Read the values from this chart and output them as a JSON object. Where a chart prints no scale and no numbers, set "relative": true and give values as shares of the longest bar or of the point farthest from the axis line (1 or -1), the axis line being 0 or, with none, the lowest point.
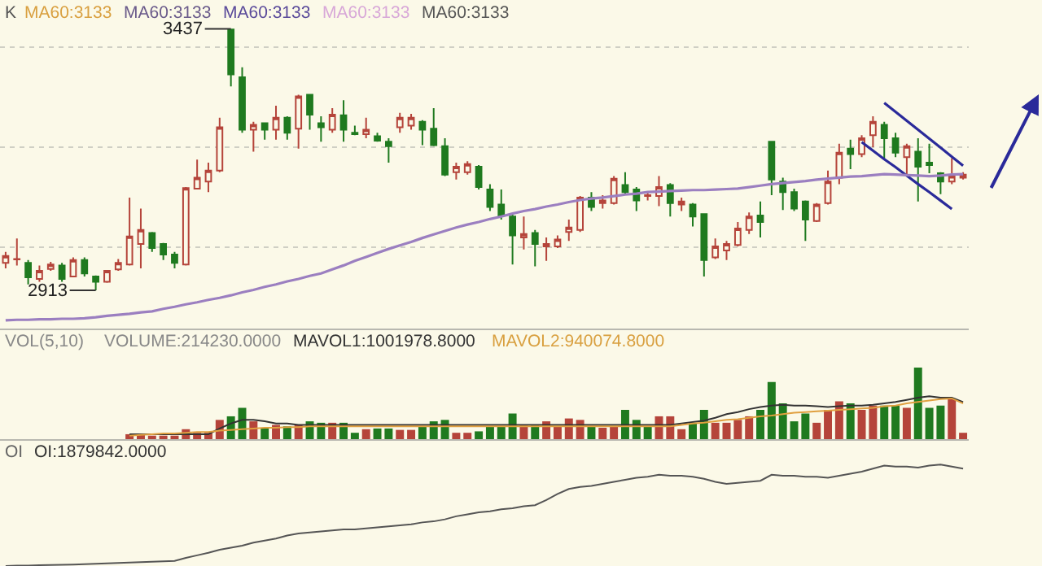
{
  "chart_data": [
    {
      "type": "candlestick",
      "tick_labels": false,
      "grid": "y",
      "ylim": [
        2837,
        3495
      ],
      "yticks": [
        {
          "value": 3000,
          "label": null
        },
        {
          "value": 3200,
          "label": null
        },
        {
          "value": 3400,
          "label": null
        }
      ],
      "annotations": [
        "K",
        "MA60:3133",
        "MA60:3133",
        "MA60:3133",
        "MA60:3133",
        "MA60:3133",
        "3437",
        "2913"
      ],
      "categories": [
        null,
        null,
        null,
        null,
        null,
        null,
        null,
        null,
        null,
        null,
        null,
        null,
        null,
        null,
        null,
        null,
        null,
        null,
        null,
        null,
        null,
        null,
        null,
        null,
        null,
        null,
        null,
        null,
        null,
        null,
        null,
        null,
        null,
        null,
        null,
        null,
        null,
        null,
        null,
        null,
        null,
        null,
        null,
        null,
        null,
        null,
        null,
        null,
        null,
        null,
        null,
        null,
        null,
        null,
        null,
        null,
        null,
        null,
        null,
        null,
        null,
        null,
        null,
        null,
        null,
        null,
        null,
        null,
        null,
        null,
        null,
        null,
        null,
        null,
        null,
        null,
        null,
        null,
        null,
        null,
        null,
        null,
        null,
        null,
        null,
        null
      ],
      "ohlc": [
        [
          2968,
          2990,
          2957,
          2982
        ],
        [
          2975,
          3017,
          2963,
          2976
        ],
        [
          2968,
          2974,
          2925,
          2939
        ],
        [
          2936,
          2963,
          2930,
          2952
        ],
        [
          2956,
          2970,
          2952,
          2965
        ],
        [
          2963,
          2968,
          2930,
          2936
        ],
        [
          2941,
          2979,
          2939,
          2974
        ],
        [
          2974,
          2979,
          2941,
          2947
        ],
        [
          2941,
          2943,
          2913,
          2930
        ],
        [
          2930,
          2954,
          2928,
          2952
        ],
        [
          2955,
          2976,
          2952,
          2968
        ],
        [
          2965,
          3099,
          2963,
          3021
        ],
        [
          3006,
          3077,
          2957,
          3034
        ],
        [
          3028,
          3030,
          2990,
          2998
        ],
        [
          3006,
          3008,
          2974,
          2985
        ],
        [
          2985,
          2990,
          2957,
          2968
        ],
        [
          2965,
          3120,
          2963,
          3118
        ],
        [
          3117,
          3175,
          3115,
          3139
        ],
        [
          3131,
          3169,
          3110,
          3153
        ],
        [
          3153,
          3259,
          3150,
          3240
        ],
        [
          3436,
          3437,
          3322,
          3346
        ],
        [
          3340,
          3360,
          3229,
          3235
        ],
        [
          3235,
          3251,
          3191,
          3245
        ],
        [
          3248,
          3248,
          3215,
          3235
        ],
        [
          3235,
          3283,
          3215,
          3259
        ],
        [
          3259,
          3262,
          3215,
          3229
        ],
        [
          3237,
          3305,
          3197,
          3302
        ],
        [
          3305,
          3305,
          3235,
          3265
        ],
        [
          3248,
          3262,
          3211,
          3240
        ],
        [
          3235,
          3278,
          3229,
          3265
        ],
        [
          3264,
          3294,
          3211,
          3235
        ],
        [
          3229,
          3243,
          3224,
          3226
        ],
        [
          3226,
          3259,
          3218,
          3235
        ],
        [
          3222,
          3229,
          3211,
          3213
        ],
        [
          3211,
          3218,
          3169,
          3202
        ],
        [
          3240,
          3269,
          3229,
          3259
        ],
        [
          3243,
          3267,
          3235,
          3259
        ],
        [
          3251,
          3254,
          3204,
          3235
        ],
        [
          3237,
          3278,
          3202,
          3204
        ],
        [
          3202,
          3218,
          3142,
          3145
        ],
        [
          3150,
          3169,
          3135,
          3161
        ],
        [
          3150,
          3172,
          3145,
          3166
        ],
        [
          3161,
          3164,
          3115,
          3120
        ],
        [
          3115,
          3126,
          3072,
          3080
        ],
        [
          3085,
          3115,
          3055,
          3063
        ],
        [
          3061,
          3066,
          2965,
          3023
        ],
        [
          3019,
          3061,
          2995,
          3026
        ],
        [
          3028,
          3034,
          2961,
          3006
        ],
        [
          3001,
          3019,
          2972,
          3006
        ],
        [
          3001,
          3023,
          2998,
          3015
        ],
        [
          3030,
          3055,
          3012,
          3039
        ],
        [
          3034,
          3102,
          3030,
          3099
        ],
        [
          3099,
          3110,
          3072,
          3080
        ],
        [
          3088,
          3104,
          3077,
          3093
        ],
        [
          3088,
          3142,
          3085,
          3137
        ],
        [
          3124,
          3150,
          3104,
          3110
        ],
        [
          3115,
          3120,
          3072,
          3093
        ],
        [
          3102,
          3110,
          3093,
          3104
        ],
        [
          3102,
          3142,
          3082,
          3120
        ],
        [
          3124,
          3128,
          3061,
          3088
        ],
        [
          3085,
          3099,
          3072,
          3091
        ],
        [
          3085,
          3088,
          3041,
          3061
        ],
        [
          3066,
          3066,
          2941,
          2974
        ],
        [
          2979,
          3017,
          2976,
          3001
        ],
        [
          2993,
          3012,
          2974,
          3006
        ],
        [
          3004,
          3050,
          3001,
          3037
        ],
        [
          3034,
          3069,
          3026,
          3061
        ],
        [
          3063,
          3091,
          3019,
          3050
        ],
        [
          3211,
          3211,
          3104,
          3135
        ],
        [
          3131,
          3139,
          3074,
          3110
        ],
        [
          3110,
          3117,
          3072,
          3077
        ],
        [
          3091,
          3093,
          3012,
          3055
        ],
        [
          3052,
          3088,
          3050,
          3085
        ],
        [
          3088,
          3153,
          3085,
          3131
        ],
        [
          3139,
          3207,
          3126,
          3189
        ],
        [
          3197,
          3215,
          3156,
          3186
        ],
        [
          3186,
          3224,
          3180,
          3218
        ],
        [
          3224,
          3262,
          3200,
          3251
        ],
        [
          3245,
          3251,
          3175,
          3218
        ],
        [
          3218,
          3229,
          3180,
          3189
        ],
        [
          3180,
          3207,
          3145,
          3202
        ],
        [
          3191,
          3218,
          3091,
          3161
        ],
        [
          3169,
          3207,
          3148,
          3164
        ],
        [
          3148,
          3150,
          3106,
          3131
        ],
        [
          3131,
          3178,
          3126,
          3142
        ],
        [
          3139,
          3150,
          3135,
          3145
        ]
      ],
      "colors": [
        "#b5443a",
        "#b5443a",
        "#1f7a1f",
        "#b5443a",
        "#b5443a",
        "#1f7a1f",
        "#b5443a",
        "#1f7a1f",
        "#1f7a1f",
        "#b5443a",
        "#b5443a",
        "#b5443a",
        "#b5443a",
        "#1f7a1f",
        "#1f7a1f",
        "#1f7a1f",
        "#b5443a",
        "#b5443a",
        "#b5443a",
        "#b5443a",
        "#1f7a1f",
        "#1f7a1f",
        "#b5443a",
        "#1f7a1f",
        "#b5443a",
        "#1f7a1f",
        "#b5443a",
        "#1f7a1f",
        "#1f7a1f",
        "#b5443a",
        "#1f7a1f",
        "#1f7a1f",
        "#b5443a",
        "#1f7a1f",
        "#1f7a1f",
        "#b5443a",
        "#b5443a",
        "#1f7a1f",
        "#1f7a1f",
        "#1f7a1f",
        "#b5443a",
        "#b5443a",
        "#1f7a1f",
        "#1f7a1f",
        "#1f7a1f",
        "#1f7a1f",
        "#b5443a",
        "#1f7a1f",
        "#b5443a",
        "#b5443a",
        "#b5443a",
        "#b5443a",
        "#1f7a1f",
        "#b5443a",
        "#b5443a",
        "#1f7a1f",
        "#1f7a1f",
        "#b5443a",
        "#b5443a",
        "#1f7a1f",
        "#b5443a",
        "#1f7a1f",
        "#1f7a1f",
        "#b5443a",
        "#b5443a",
        "#b5443a",
        "#b5443a",
        "#1f7a1f",
        "#1f7a1f",
        "#1f7a1f",
        "#1f7a1f",
        "#1f7a1f",
        "#b5443a",
        "#b5443a",
        "#b5443a",
        "#1f7a1f",
        "#b5443a",
        "#b5443a",
        "#1f7a1f",
        "#1f7a1f",
        "#b5443a",
        "#1f7a1f",
        "#1f7a1f",
        "#1f7a1f",
        "#b5443a",
        "#b5443a"
      ],
      "series": [
        {
          "type": "line",
          "color": "#2a2a9a",
          "values": [
            null,
            null,
            null,
            null,
            null,
            null,
            null,
            null,
            null,
            null,
            null,
            null,
            null,
            null,
            null,
            null,
            null,
            null,
            null,
            null,
            null,
            null,
            null,
            null,
            null,
            null,
            null,
            null,
            null,
            null,
            null,
            null,
            null,
            null,
            null,
            null,
            null,
            null,
            null,
            null,
            null,
            null,
            null,
            null,
            null,
            null,
            null,
            null,
            null,
            null,
            null,
            null,
            null,
            null,
            null,
            null,
            null,
            null,
            null,
            null,
            null,
            null,
            null,
            null,
            null,
            null,
            null,
            null,
            null,
            null,
            null,
            null,
            null,
            null,
            null,
            null,
            null,
            null,
            3289,
            3271,
            3253,
            3235,
            3217,
            3199,
            3181,
            3163
          ]
        },
        {
          "type": "line",
          "color": "#2a2a9a",
          "values": [
            null,
            null,
            null,
            null,
            null,
            null,
            null,
            null,
            null,
            null,
            null,
            null,
            null,
            null,
            null,
            null,
            null,
            null,
            null,
            null,
            null,
            null,
            null,
            null,
            null,
            null,
            null,
            null,
            null,
            null,
            null,
            null,
            null,
            null,
            null,
            null,
            null,
            null,
            null,
            null,
            null,
            null,
            null,
            null,
            null,
            null,
            null,
            null,
            null,
            null,
            null,
            null,
            null,
            null,
            null,
            null,
            null,
            null,
            null,
            null,
            null,
            null,
            null,
            null,
            null,
            null,
            null,
            null,
            null,
            null,
            null,
            null,
            null,
            null,
            null,
            null,
            3210,
            3193,
            3176,
            3160,
            3143,
            3126,
            3110,
            3093,
            3076,
            null
          ]
        },
        {
          "type": "line",
          "color": "#9b7fc0",
          "values": [
            2853,
            2854,
            2854,
            2855,
            2855,
            2856,
            2856,
            2857,
            2859,
            2862,
            2864,
            2866,
            2869,
            2871,
            2876,
            2880,
            2885,
            2889,
            2894,
            2898,
            2903,
            2909,
            2914,
            2920,
            2925,
            2931,
            2936,
            2942,
            2947,
            2955,
            2963,
            2972,
            2980,
            2988,
            2996,
            3003,
            3010,
            3018,
            3025,
            3032,
            3039,
            3045,
            3050,
            3056,
            3061,
            3067,
            3072,
            3076,
            3081,
            3085,
            3090,
            3094,
            3097,
            3099,
            3102,
            3105,
            3107,
            3110,
            3111,
            3112,
            3113,
            3114,
            3114,
            3115,
            3116,
            3117,
            3120,
            3123,
            3126,
            3128,
            3130,
            3132,
            3135,
            3137,
            3139,
            3141,
            3142,
            3144,
            3146,
            3145,
            3144,
            3143,
            3142,
            3143,
            3145,
            3146
          ]
        }
      ]
    },
    {
      "type": "bar",
      "relative": true,
      "tick_labels": false,
      "annotations": [
        "VOL(5,10)",
        "VOLUME:214230.0000",
        "MAVOL1:1001978.8000",
        "MAVOL2:940074.8000"
      ],
      "categories": [
        null,
        null,
        null,
        null,
        null,
        null,
        null,
        null,
        null,
        null,
        null,
        null,
        null,
        null,
        null,
        null,
        null,
        null,
        null,
        null,
        null,
        null,
        null,
        null,
        null,
        null,
        null,
        null,
        null,
        null,
        null,
        null,
        null,
        null,
        null,
        null,
        null,
        null,
        null,
        null,
        null,
        null,
        null,
        null,
        null,
        null,
        null,
        null,
        null,
        null,
        null,
        null,
        null,
        null,
        null,
        null,
        null,
        null,
        null,
        null,
        null,
        null,
        null,
        null,
        null,
        null,
        null,
        null,
        null,
        null,
        null,
        null,
        null,
        null,
        null,
        null,
        null,
        null,
        null,
        null,
        null,
        null,
        null,
        null,
        null,
        null
      ],
      "series": [
        {
          "type": "bar",
          "values": [
            null,
            null,
            null,
            null,
            null,
            null,
            null,
            null,
            null,
            null,
            null,
            0.07,
            0.07,
            0.05,
            0.05,
            0.05,
            0.14,
            0.09,
            0.09,
            0.27,
            0.32,
            0.44,
            0.25,
            0.15,
            0.2,
            0.18,
            0.2,
            0.25,
            0.23,
            0.23,
            0.23,
            0.09,
            0.14,
            0.15,
            0.15,
            0.13,
            0.13,
            0.18,
            0.25,
            0.27,
            0.09,
            0.09,
            0.11,
            0.18,
            0.18,
            0.36,
            0.2,
            0.2,
            0.25,
            0.18,
            0.29,
            0.27,
            0.18,
            0.16,
            0.18,
            0.41,
            0.27,
            0.18,
            0.32,
            0.32,
            0.14,
            0.23,
            0.41,
            0.23,
            0.23,
            0.27,
            0.32,
            0.41,
            0.8,
            0.5,
            0.25,
            0.36,
            0.23,
            0.41,
            0.53,
            0.5,
            0.41,
            0.47,
            0.47,
            0.47,
            0.44,
            1,
            0.44,
            0.47,
            0.56,
            0.09
          ],
          "colors": [
            "#b5443a",
            "#b5443a",
            "#b5443a",
            "#b5443a",
            "#b5443a",
            "#b5443a",
            "#b5443a",
            "#b5443a",
            "#b5443a",
            "#b5443a",
            "#b5443a",
            "#b5443a",
            "#b5443a",
            "#b5443a",
            "#b5443a",
            "#b5443a",
            "#b5443a",
            "#b5443a",
            "#b5443a",
            "#b5443a",
            "#1f7a1f",
            "#1f7a1f",
            "#b5443a",
            "#1f7a1f",
            "#b5443a",
            "#1f7a1f",
            "#b5443a",
            "#1f7a1f",
            "#1f7a1f",
            "#b5443a",
            "#1f7a1f",
            "#1f7a1f",
            "#b5443a",
            "#1f7a1f",
            "#1f7a1f",
            "#b5443a",
            "#b5443a",
            "#1f7a1f",
            "#1f7a1f",
            "#1f7a1f",
            "#b5443a",
            "#b5443a",
            "#1f7a1f",
            "#1f7a1f",
            "#1f7a1f",
            "#1f7a1f",
            "#b5443a",
            "#1f7a1f",
            "#b5443a",
            "#b5443a",
            "#b5443a",
            "#b5443a",
            "#1f7a1f",
            "#b5443a",
            "#b5443a",
            "#1f7a1f",
            "#1f7a1f",
            "#1f7a1f",
            "#b5443a",
            "#b5443a",
            "#b5443a",
            "#1f7a1f",
            "#1f7a1f",
            "#b5443a",
            "#b5443a",
            "#b5443a",
            "#b5443a",
            "#1f7a1f",
            "#1f7a1f",
            "#1f7a1f",
            "#1f7a1f",
            "#1f7a1f",
            "#b5443a",
            "#b5443a",
            "#b5443a",
            "#1f7a1f",
            "#b5443a",
            "#b5443a",
            "#1f7a1f",
            "#1f7a1f",
            "#b5443a",
            "#1f7a1f",
            "#1f7a1f",
            "#1f7a1f",
            "#b5443a",
            "#b5443a"
          ]
        },
        {
          "type": "line",
          "color": "#333333",
          "values": [
            null,
            null,
            null,
            null,
            null,
            null,
            null,
            null,
            null,
            null,
            null,
            0.07,
            0.07,
            0.07,
            0.07,
            0.07,
            0.07,
            0.07,
            0.07,
            0.15,
            0.22,
            0.27,
            0.27,
            0.25,
            0.22,
            0.22,
            0.2,
            0.2,
            0.2,
            0.2,
            0.2,
            0.2,
            0.2,
            0.2,
            0.2,
            0.2,
            0.2,
            0.2,
            0.2,
            0.2,
            0.2,
            0.2,
            0.2,
            0.2,
            0.2,
            0.2,
            0.2,
            0.2,
            0.2,
            0.2,
            0.2,
            0.2,
            0.2,
            0.2,
            0.2,
            0.2,
            0.2,
            0.2,
            0.2,
            0.2,
            0.22,
            0.24,
            0.26,
            0.3,
            0.35,
            0.38,
            0.42,
            0.45,
            0.47,
            0.48,
            0.47,
            0.47,
            0.46,
            0.45,
            0.46,
            0.47,
            0.47,
            0.48,
            0.5,
            0.52,
            0.55,
            0.58,
            0.6,
            0.58,
            0.58,
            0.52
          ]
        },
        {
          "type": "line",
          "color": "#e0a040",
          "values": [
            null,
            null,
            null,
            null,
            null,
            null,
            null,
            null,
            null,
            null,
            null,
            0.05,
            0.06,
            0.07,
            0.08,
            0.08,
            0.09,
            0.1,
            0.1,
            0.12,
            0.13,
            0.14,
            0.15,
            0.16,
            0.16,
            0.17,
            0.17,
            0.18,
            0.18,
            0.18,
            0.18,
            0.18,
            0.18,
            0.18,
            0.18,
            0.18,
            0.18,
            0.18,
            0.18,
            0.18,
            0.18,
            0.18,
            0.18,
            0.18,
            0.18,
            0.18,
            0.18,
            0.18,
            0.18,
            0.18,
            0.18,
            0.18,
            0.18,
            0.18,
            0.18,
            0.18,
            0.18,
            0.18,
            0.18,
            0.18,
            0.2,
            0.22,
            0.23,
            0.25,
            0.27,
            0.28,
            0.3,
            0.32,
            0.33,
            0.35,
            0.37,
            0.38,
            0.39,
            0.4,
            0.41,
            0.42,
            0.43,
            0.44,
            0.46,
            0.47,
            0.5,
            0.52,
            0.54,
            0.56,
            0.57,
            0.5
          ]
        }
      ]
    },
    {
      "type": "line",
      "relative": true,
      "tick_labels": false,
      "annotations": [
        "OI",
        "OI:1879842.0000"
      ],
      "categories": [
        null,
        null,
        null,
        null,
        null,
        null,
        null,
        null,
        null,
        null,
        null,
        null,
        null,
        null,
        null,
        null,
        null,
        null,
        null,
        null,
        null,
        null,
        null,
        null,
        null,
        null,
        null,
        null,
        null,
        null,
        null,
        null,
        null,
        null,
        null,
        null,
        null,
        null,
        null,
        null,
        null,
        null,
        null,
        null,
        null,
        null,
        null,
        null,
        null,
        null,
        null,
        null,
        null,
        null,
        null,
        null,
        null,
        null,
        null,
        null,
        null,
        null,
        null,
        null,
        null,
        null,
        null,
        null,
        null,
        null,
        null,
        null,
        null,
        null,
        null,
        null,
        null,
        null,
        null,
        null,
        null,
        null,
        null,
        null,
        null,
        null
      ],
      "series": [
        {
          "color": "#555555",
          "values": [
            0,
            0.003,
            0.005,
            0.008,
            0.01,
            0.013,
            0.015,
            0.019,
            0.023,
            0.027,
            0.031,
            0.035,
            0.039,
            0.043,
            0.047,
            0.05,
            0.08,
            0.105,
            0.13,
            0.16,
            0.18,
            0.2,
            0.23,
            0.25,
            0.27,
            0.3,
            0.32,
            0.33,
            0.34,
            0.35,
            0.36,
            0.36,
            0.37,
            0.38,
            0.39,
            0.4,
            0.41,
            0.43,
            0.44,
            0.46,
            0.49,
            0.51,
            0.53,
            0.54,
            0.56,
            0.57,
            0.59,
            0.6,
            0.65,
            0.71,
            0.76,
            0.78,
            0.79,
            0.81,
            0.83,
            0.85,
            0.87,
            0.88,
            0.9,
            0.89,
            0.89,
            0.88,
            0.86,
            0.83,
            0.81,
            0.82,
            0.83,
            0.84,
            0.9,
            0.89,
            0.89,
            0.88,
            0.88,
            0.87,
            0.89,
            0.91,
            0.93,
            0.96,
            0.99,
            0.98,
            0.98,
            0.97,
            0.99,
            1,
            0.98,
            0.96
          ]
        }
      ]
    }
  ]
}
